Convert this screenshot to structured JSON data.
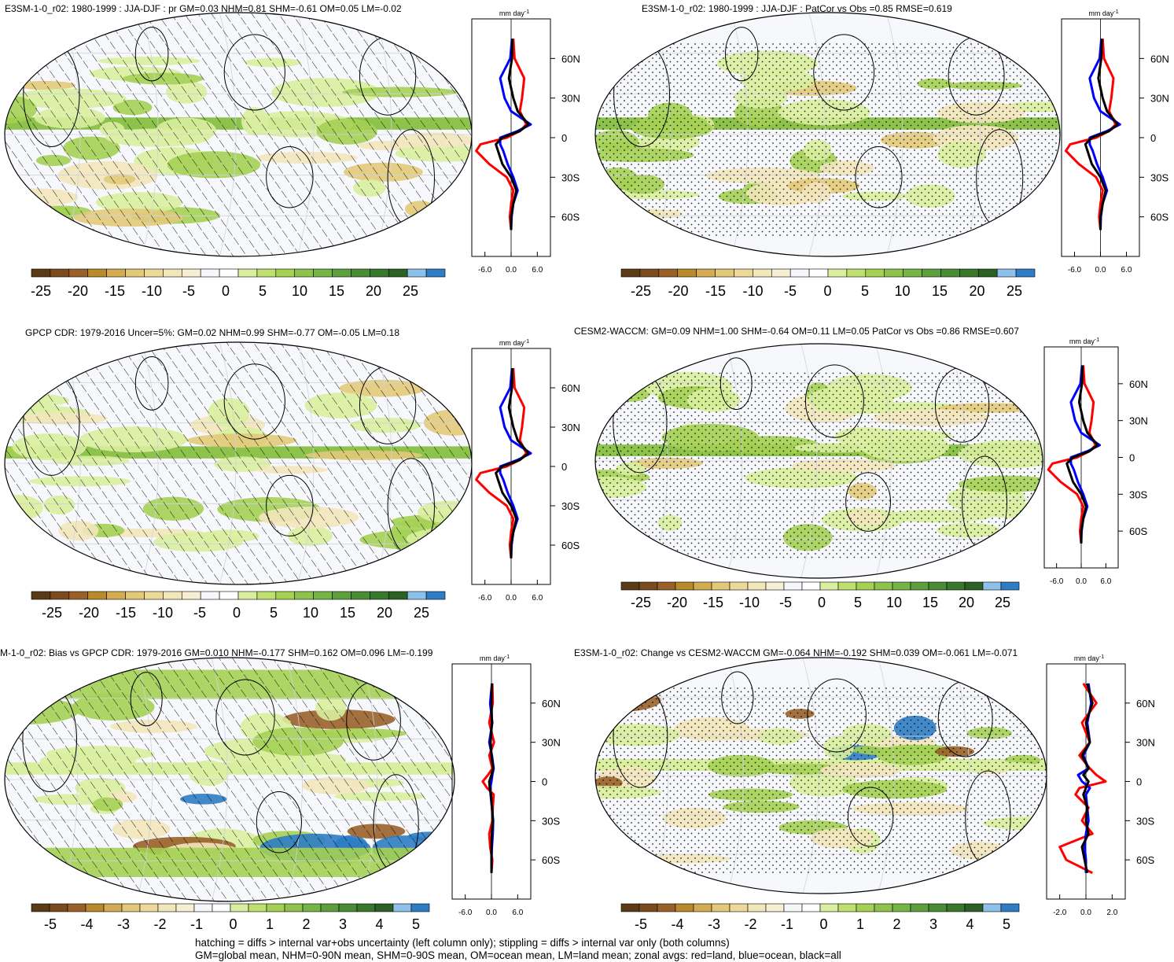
{
  "panels": [
    {
      "id": "p1",
      "title": "E3SM-1-0_r02: 1980-1999 : JJA-DJF : pr GM=0.03 NHM=0.81 SHM=-0.61 OM=0.05 LM=-0.02",
      "hatching": true,
      "stipple": false,
      "colorbar": "cbar_main",
      "zonal": "z1",
      "profile": "std"
    },
    {
      "id": "p2",
      "title": "E3SM-1-0_r02: 1980-1999 : JJA-DJF : PatCor vs Obs =0.85 RMSE=0.619",
      "hatching": false,
      "stipple": true,
      "colorbar": "cbar_main",
      "zonal": "z1",
      "profile": "std"
    },
    {
      "id": "p3",
      "title": "GPCP CDR: 1979-2016 Uncer=5%: GM=0.02 NHM=0.99 SHM=-0.77 OM=-0.05 LM=0.18",
      "hatching": true,
      "stipple": false,
      "colorbar": "cbar_main",
      "zonal": "z1",
      "profile": "std"
    },
    {
      "id": "p4",
      "title": "CESM2-WACCM: GM=0.09 NHM=1.00 SHM=-0.64 OM=0.11 LM=0.05 PatCor vs Obs =0.86 RMSE=0.607",
      "hatching": false,
      "stipple": true,
      "colorbar": "cbar_main",
      "zonal": "z1",
      "profile": "std"
    },
    {
      "id": "p5",
      "title": "M-1-0_r02: Bias vs GPCP CDR: 1979-2016 GM=0.010 NHM=-0.177 SHM=0.162 OM=0.096 LM=-0.199",
      "hatching": true,
      "stipple": false,
      "colorbar": "cbar_diff",
      "zonal": "z1",
      "profile": "bias"
    },
    {
      "id": "p6",
      "title": "E3SM-1-0_r02: Change vs CESM2-WACCM GM=-0.064 NHM=-0.192 SHM=0.039 OM=-0.061 LM=-0.071",
      "hatching": false,
      "stipple": true,
      "colorbar": "cbar_diff",
      "zonal": "z2",
      "profile": "change"
    }
  ],
  "colorbars": {
    "cbar_main": {
      "labels": [
        "-25",
        "-20",
        "-15",
        "-10",
        "-5",
        "0",
        "5",
        "10",
        "15",
        "20",
        "25"
      ]
    },
    "cbar_diff": {
      "labels": [
        "-5",
        "-4",
        "-3",
        "-2",
        "-1",
        "0",
        "1",
        "2",
        "3",
        "4",
        "5"
      ]
    }
  },
  "colors": {
    "colorbar_boxes": [
      "#5b3a16",
      "#7a4b1c",
      "#99602a",
      "#b88a2c",
      "#d2ab52",
      "#e2c979",
      "#ecd99a",
      "#f2e6bb",
      "#f7efd4",
      "#f6f7fb",
      "#ffffff",
      "#d9ee9f",
      "#bfe06f",
      "#a4d054",
      "#8dc24d",
      "#74b545",
      "#5d9f3e",
      "#4a8c35",
      "#39772c",
      "#2c6024",
      "#8ec1ea",
      "#2e7cc4"
    ],
    "land": "#ff0000",
    "ocean": "#0000ff",
    "all": "#000000",
    "background": "#f7f8fc"
  },
  "zonal_axes": {
    "z1": {
      "xticklabels": [
        "-6.0",
        "0.0",
        "6.0"
      ],
      "xlim": [
        -9,
        9
      ]
    },
    "z2": {
      "xticklabels": [
        "-2.0",
        "0.0",
        "2.0"
      ],
      "xlim": [
        -3,
        3
      ]
    }
  },
  "units": "mm day",
  "units_exp": "-1",
  "lat_labels": [
    "60N",
    "30N",
    "0",
    "30S",
    "60S"
  ],
  "footer": {
    "line1": "hatching = diffs > internal var+obs uncertainty (left column only); stippling = diffs > internal var only (both columns)",
    "line2": "GM=global mean, NHM=0-90N mean, SHM=0-90S mean, OM=ocean mean, LM=land mean; zonal avgs: red=land, blue=ocean, black=all"
  },
  "chart_data": {
    "type": "line",
    "description_series": [
      "land",
      "ocean",
      "all"
    ],
    "lat": [
      75,
      60,
      45,
      30,
      20,
      10,
      5,
      0,
      -5,
      -10,
      -20,
      -30,
      -40,
      -50,
      -60,
      -70
    ],
    "profiles": {
      "std": {
        "land": [
          0.5,
          0.8,
          3.0,
          2.5,
          2.0,
          3.5,
          2.0,
          -1.0,
          -7.0,
          -8.0,
          -5.0,
          -1.0,
          0.5,
          0.0,
          -0.3,
          0.0
        ],
        "ocean": [
          0.2,
          -0.2,
          -2.5,
          -1.5,
          0.0,
          4.5,
          1.5,
          -2.5,
          -2.5,
          -1.8,
          -0.8,
          0.5,
          1.5,
          0.5,
          0.1,
          0.0
        ],
        "all": [
          0.3,
          0.2,
          -0.5,
          0.5,
          1.5,
          4.0,
          2.0,
          -2.0,
          -3.5,
          -3.0,
          -2.0,
          0.0,
          1.2,
          0.5,
          0.0,
          0.0
        ]
      },
      "bias": {
        "land": [
          0.2,
          0.3,
          -0.5,
          0.6,
          -0.5,
          0.2,
          -0.8,
          -2.0,
          -1.0,
          0.5,
          0.3,
          0.2,
          -0.5,
          -0.3,
          0.2,
          0.0
        ],
        "ocean": [
          0.1,
          -0.3,
          0.2,
          -0.5,
          0.1,
          0.5,
          0.2,
          0.0,
          -0.3,
          -0.2,
          0.1,
          0.4,
          0.3,
          0.1,
          0.0,
          0.0
        ],
        "all": [
          0.1,
          0.0,
          0.1,
          -0.2,
          0.0,
          0.4,
          0.0,
          -0.5,
          -0.4,
          -0.1,
          0.1,
          0.3,
          0.1,
          0.0,
          0.0,
          0.0
        ]
      },
      "change": {
        "land": [
          -0.2,
          0.8,
          -0.3,
          0.3,
          -0.5,
          0.3,
          0.8,
          1.5,
          -0.5,
          -0.8,
          0.2,
          -0.3,
          0.5,
          -2.0,
          -1.5,
          0.5
        ],
        "ocean": [
          0.2,
          0.4,
          0.1,
          0.3,
          -0.2,
          0.2,
          -0.6,
          -0.3,
          0.3,
          0.0,
          0.1,
          0.2,
          0.0,
          -0.1,
          0.0,
          0.0
        ],
        "all": [
          0.1,
          0.5,
          0.0,
          0.3,
          -0.3,
          0.2,
          -0.2,
          0.2,
          0.0,
          -0.2,
          0.1,
          0.0,
          0.2,
          -0.3,
          -0.1,
          0.1
        ]
      }
    }
  }
}
